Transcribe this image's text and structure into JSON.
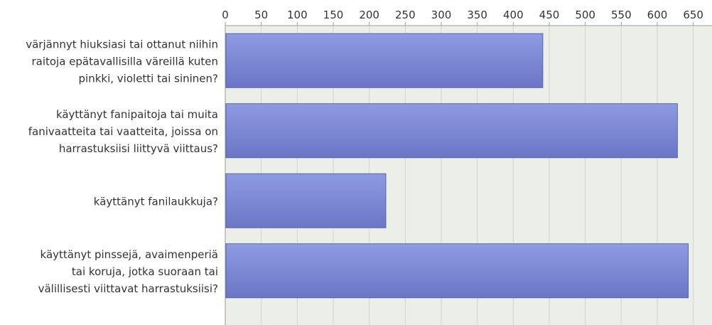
{
  "chart_data": {
    "type": "bar",
    "orientation": "horizontal",
    "categories": [
      "värjännyt hiuksiasi tai ottanut niihin raitoja epätavallisilla väreillä kuten pinkki, violetti tai sininen?",
      "käyttänyt fanipaitoja tai muita fanivaatteita tai vaatteita, joissa on harrastuksiisi liittyvä viittaus?",
      "käyttänyt fanilaukkuja?",
      "käyttänyt pinssejä, avaimenperiä tai koruja, jotka suoraan tai välillisesti viittavat harrastuksiisi?"
    ],
    "category_lines": [
      [
        "värjännyt hiuksiasi tai ottanut niihin",
        "raitoja epätavallisilla väreillä kuten",
        "pinkki, violetti tai sininen?"
      ],
      [
        "käyttänyt fanipaitoja tai muita",
        "fanivaatteita tai vaatteita, joissa on",
        "harrastuksiisi liittyvä viittaus?"
      ],
      [
        "käyttänyt fanilaukkuja?"
      ],
      [
        "käyttänyt pinssejä, avaimenperiä",
        "tai koruja, jotka suoraan tai",
        "välillisesti viittavat harrastuksiisi?"
      ]
    ],
    "values": [
      441,
      628,
      223,
      643
    ],
    "xlim": [
      0,
      670
    ],
    "x_ticks": [
      "0",
      "50",
      "100",
      "150",
      "200",
      "250",
      "300",
      "350",
      "400",
      "450",
      "500",
      "550",
      "600",
      "650"
    ],
    "axis_position": "top",
    "grid": true,
    "colors": {
      "bar_top": "#8e9ae2",
      "bar_bottom": "#6b77c6",
      "bar_edge": "#5a64a8",
      "plot_bg": "#eceee8",
      "grid": "#d2d4ce",
      "axis": "#9a9c96",
      "text": "#333333"
    }
  }
}
